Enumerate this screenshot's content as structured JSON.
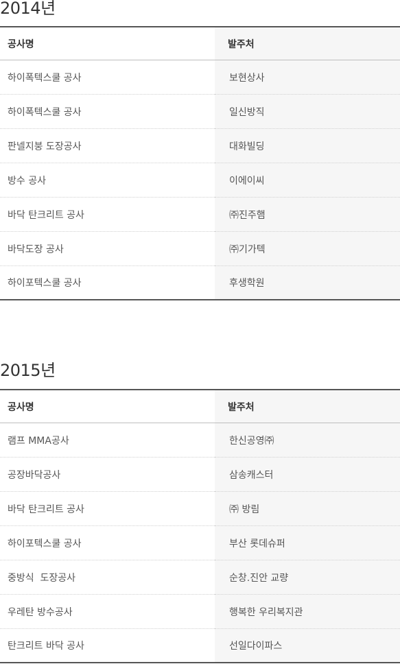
{
  "sections": [
    {
      "year": "2014년",
      "headers": {
        "project": "공사명",
        "client": "발주처"
      },
      "rows": [
        {
          "project": "하이폭텍스쿨 공사",
          "client": "보현상사"
        },
        {
          "project": "하이폭텍스쿨 공사",
          "client": "일신방직"
        },
        {
          "project": "판넬지붕 도장공사",
          "client": "대화빌딩"
        },
        {
          "project": "방수 공사",
          "client": "이에이씨"
        },
        {
          "project": "바닥 탄크리트 공사",
          "client": "㈜진주햄"
        },
        {
          "project": "바닥도장 공사",
          "client": "㈜기가텍"
        },
        {
          "project": "하이포텍스쿨 공사",
          "client": "후생학원"
        }
      ]
    },
    {
      "year": "2015년",
      "headers": {
        "project": "공사명",
        "client": "발주처"
      },
      "rows": [
        {
          "project": "램프 MMA공사",
          "client": "한신공영㈜"
        },
        {
          "project": "공장바닥공사",
          "client": "삼송캐스터"
        },
        {
          "project": "바닥 탄크리트 공사",
          "client": "㈜ 방림"
        },
        {
          "project": "하이포텍스쿨 공사",
          "client": "부산 롯데슈퍼"
        },
        {
          "project": "중방식  도장공사",
          "client": "순창.진안 교량"
        },
        {
          "project": "우레탄 방수공사",
          "client": "행복한 우리복지관"
        },
        {
          "project": "탄크리트 바닥 공사",
          "client": "선일다이파스"
        }
      ]
    }
  ]
}
